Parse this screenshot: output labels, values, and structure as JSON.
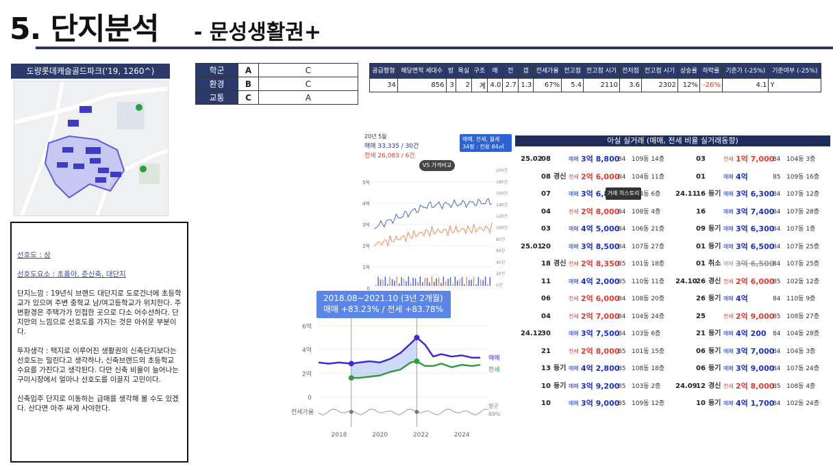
{
  "header": {
    "title": "5. 단지분석",
    "subtitle": "- 문성생활권+"
  },
  "complex": {
    "name": "도량롯데캐슬골드파크('19, 1260^)"
  },
  "grades": [
    {
      "label": "학군",
      "grade": "A",
      "note": "C"
    },
    {
      "label": "환경",
      "grade": "B",
      "note": "C"
    },
    {
      "label": "교통",
      "grade": "C",
      "note": "A"
    }
  ],
  "info": {
    "headers": [
      "공급평형",
      "해당면적 세대수",
      "방",
      "욕실",
      "구조",
      "매",
      "전",
      "갭",
      "전세가율",
      "전고점",
      "전고점 시기",
      "전저점",
      "전고점 시기",
      "상승률",
      "하락률",
      "기준가 (-25%)",
      "기준여부 (-25%)"
    ],
    "values": [
      "34",
      "856",
      "3",
      "2",
      "계",
      "4.0",
      "2.7",
      "1.3",
      "67%",
      "5.4",
      "2110",
      "3.6",
      "2302",
      "12%",
      "-26%",
      "4.1",
      "Y"
    ]
  },
  "analysis": {
    "pref": "선호도 : 상",
    "pref_factor": "선호도요소 : 초품아, 준신축, 대단지",
    "feel": "단지느낌 : 19년식 브랜드 대단지로 도로건너에 초등학교가 있으며 주변 중학교 남/여고등학교가 위치한다. 주변환경은 주택가가 인접한 곳으로 다소 어수선하다. 단지만의 느낌으로 선호도를 가지는 것은 아쉬운 부분이다.",
    "invest": "투자생각 : 택지로 이루어진 생활권의 신축단지보다는 선호도는 밀린다고 생각하나, 신축브랜드의 초등학교 수요를 가진다고 생각된다. 다만 신축 비율이 늘어나는 구미시장에서 얼마나 선호도를 이끌지 고민이다.",
    "newmove": "신축입주 단지로 이동하는 급매를 생각해 볼 수도 있겠다. 산다면 아주 싸게 사야한다."
  },
  "price_chart": {
    "period": "20년 5월",
    "sale": "매매 33,335 / 30건",
    "jeonse": "전세 26,083 / 6건",
    "vs": "VS 가격비교",
    "legend1": "매매, 전세, 월세",
    "legend2": "34평 : 전용 84㎡",
    "y_left": [
      "5억",
      "4억",
      "3억",
      "2억",
      "1억",
      "0"
    ],
    "y_right": [
      "200건",
      "180건",
      "160건",
      "140건",
      "120건",
      "100건",
      "80건",
      "60건",
      "40건",
      "20건",
      "0건"
    ]
  },
  "chart_data": {
    "type": "line",
    "tooltip_period": "2018.08~2021.10 (3년 2개월)",
    "tooltip_change": "매매 +83.23%  /  전세 +83.78%",
    "x_ticks": [
      "2018",
      "2020",
      "2022",
      "2024"
    ],
    "y_ticks": [
      "6억",
      "4억",
      "2억",
      "0"
    ],
    "series_labels": [
      "매매",
      "전세"
    ],
    "ratio_label": "전세가율",
    "avg_label": "평균",
    "avg_value": "69%",
    "sale_x": [
      2017.0,
      2017.5,
      2018.0,
      2018.6,
      2019.0,
      2019.5,
      2020.0,
      2020.5,
      2021.0,
      2021.5,
      2021.8,
      2022.2,
      2022.6,
      2023.0,
      2023.5,
      2024.0,
      2024.5,
      2024.9
    ],
    "sale_y": [
      2.9,
      2.8,
      2.9,
      2.8,
      2.9,
      3.0,
      2.9,
      3.2,
      3.7,
      4.5,
      5.0,
      4.4,
      3.4,
      3.6,
      3.4,
      3.5,
      3.3,
      3.3
    ],
    "jeonse_x": [
      2018.6,
      2019.0,
      2019.5,
      2020.0,
      2020.5,
      2021.0,
      2021.5,
      2021.8,
      2022.2,
      2022.6,
      2023.0,
      2023.5,
      2024.0,
      2024.5,
      2024.9
    ],
    "jeonse_y": [
      1.6,
      1.6,
      1.7,
      1.8,
      2.1,
      2.3,
      2.9,
      3.0,
      2.6,
      2.6,
      2.8,
      2.5,
      2.7,
      2.6,
      2.7
    ]
  },
  "tx": {
    "title": "아실 실거래 (매매, 전세 비율 실거래동향)",
    "history": "거래 히스토리",
    "left": [
      {
        "ym": "25.02",
        "d": "08",
        "tag": "",
        "type": "매매",
        "price": "3억 8,800",
        "area": "84",
        "dong": "109동 14층"
      },
      {
        "ym": "",
        "d": "08",
        "tag": "경신",
        "type": "전세",
        "price": "2억 6,000",
        "area": "84",
        "dong": "104동 11층"
      },
      {
        "ym": "",
        "d": "07",
        "tag": "",
        "type": "매매",
        "price": "3억 6,800",
        "area": "84",
        "dong": "104동 6층"
      },
      {
        "ym": "",
        "d": "04",
        "tag": "",
        "type": "전세",
        "price": "2억 8,000",
        "area": "84",
        "dong": "108동 4층"
      },
      {
        "ym": "",
        "d": "03",
        "tag": "",
        "type": "매매",
        "price": "4억 5,000",
        "area": "84",
        "dong": "106동 21층"
      },
      {
        "ym": "25.01",
        "d": "20",
        "tag": "",
        "type": "매매",
        "price": "3억 8,500",
        "area": "84",
        "dong": "107동 27층"
      },
      {
        "ym": "",
        "d": "18",
        "tag": "경신",
        "type": "전세",
        "price": "2억 8,350",
        "area": "85",
        "dong": "101동 18층"
      },
      {
        "ym": "",
        "d": "11",
        "tag": "",
        "type": "매매",
        "price": "4억 2,000",
        "area": "85",
        "dong": "110동 11층"
      },
      {
        "ym": "",
        "d": "06",
        "tag": "",
        "type": "전세",
        "price": "2억 6,000",
        "area": "84",
        "dong": "108동 20층"
      },
      {
        "ym": "",
        "d": "04",
        "tag": "",
        "type": "전세",
        "price": "2억 7,000",
        "area": "84",
        "dong": "104동 24층"
      },
      {
        "ym": "24.12",
        "d": "30",
        "tag": "",
        "type": "매매",
        "price": "3억 7,500",
        "area": "84",
        "dong": "103동 6층"
      },
      {
        "ym": "",
        "d": "21",
        "tag": "",
        "type": "전세",
        "price": "2억 8,000",
        "area": "85",
        "dong": "101동 15층"
      },
      {
        "ym": "",
        "d": "13",
        "tag": "등기",
        "type": "매매",
        "price": "4억 2,800",
        "area": "85",
        "dong": "108동 18층"
      },
      {
        "ym": "",
        "d": "10",
        "tag": "등기",
        "type": "매매",
        "price": "3억 9,200",
        "area": "85",
        "dong": "103동 2층"
      },
      {
        "ym": "",
        "d": "10",
        "tag": "",
        "type": "매매",
        "price": "3억 9,000",
        "area": "85",
        "dong": "109동 12층"
      }
    ],
    "right": [
      {
        "ym": "",
        "d": "03",
        "tag": "",
        "type": "전세",
        "price": "1억 7,000",
        "area": "84",
        "dong": "104동 3층"
      },
      {
        "ym": "",
        "d": "01",
        "tag": "",
        "type": "매매",
        "price": "4억",
        "area": "85",
        "dong": "109동 16층"
      },
      {
        "ym": "24.11",
        "d": "16",
        "tag": "등기",
        "type": "매매",
        "price": "3억 6,300",
        "area": "84",
        "dong": "107동 12층"
      },
      {
        "ym": "",
        "d": "16",
        "tag": "",
        "type": "매매",
        "price": "3억 7,400",
        "area": "84",
        "dong": "107동 28층"
      },
      {
        "ym": "",
        "d": "09",
        "tag": "등기",
        "type": "매매",
        "price": "3억 6,300",
        "area": "84",
        "dong": "107동 1층"
      },
      {
        "ym": "",
        "d": "01",
        "tag": "등기",
        "type": "매매",
        "price": "3억 6,500",
        "area": "84",
        "dong": "107동 25층"
      },
      {
        "ym": "",
        "d": "01",
        "tag": "취소",
        "type": "매매",
        "price": "3억 6,500",
        "area": "84",
        "dong": "107동 25층"
      },
      {
        "ym": "24.10",
        "d": "26",
        "tag": "경신",
        "type": "전세",
        "price": "2억 6,000",
        "area": "85",
        "dong": "102동 12층"
      },
      {
        "ym": "",
        "d": "26",
        "tag": "등기",
        "type": "매매",
        "price": "4억",
        "area": "84",
        "dong": "110동 9층"
      },
      {
        "ym": "",
        "d": "25",
        "tag": "",
        "type": "전세",
        "price": "2억 9,000",
        "area": "85",
        "dong": "108동 27층"
      },
      {
        "ym": "",
        "d": "21",
        "tag": "등기",
        "type": "매매",
        "price": "4억 200",
        "area": "84",
        "dong": "104동 28층"
      },
      {
        "ym": "",
        "d": "06",
        "tag": "등기",
        "type": "매매",
        "price": "3억 7,000",
        "area": "84",
        "dong": "104동 3층"
      },
      {
        "ym": "",
        "d": "06",
        "tag": "등기",
        "type": "매매",
        "price": "3억 9,000",
        "area": "84",
        "dong": "107동 24층"
      },
      {
        "ym": "24.09",
        "d": "12",
        "tag": "경신",
        "type": "전세",
        "price": "2억 8,000",
        "area": "85",
        "dong": "108동 4층"
      },
      {
        "ym": "",
        "d": "10",
        "tag": "등기",
        "type": "매매",
        "price": "4억 1,700",
        "area": "84",
        "dong": "102동 24층"
      }
    ]
  },
  "colors": {
    "navy": "#2b3a6b",
    "sale": "#1a2ec8",
    "jeonse": "#e23a2e",
    "green": "#2e9e3e"
  }
}
